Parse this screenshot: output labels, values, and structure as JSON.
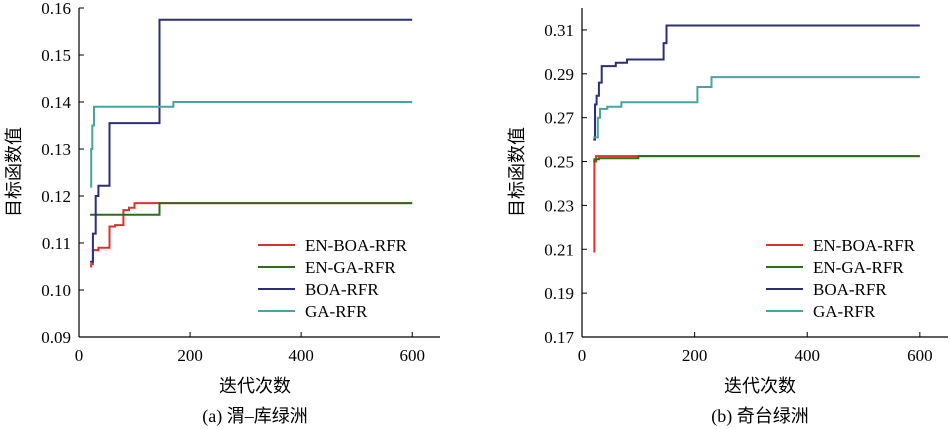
{
  "chart_data": [
    {
      "type": "line",
      "caption": "(a) 渭–库绿洲",
      "xlabel": "迭代次数",
      "ylabel": "目标函数值",
      "xlim": [
        0,
        650
      ],
      "ylim": [
        0.09,
        0.16
      ],
      "xticks": [
        0,
        200,
        400,
        600
      ],
      "yticks": [
        "0.09",
        "0.10",
        "0.11",
        "0.12",
        "0.13",
        "0.14",
        "0.15",
        "0.16"
      ],
      "legend_position": "lower-right",
      "series": [
        {
          "name": "EN-BOA-RFR",
          "color": "#e0302a",
          "x": [
            20,
            22,
            22,
            25,
            25,
            35,
            35,
            40,
            40,
            55,
            55,
            65,
            65,
            80,
            80,
            90,
            90,
            100,
            100,
            145,
            145,
            600
          ],
          "y": [
            0.105,
            0.105,
            0.1055,
            0.1055,
            0.1085,
            0.1085,
            0.109,
            0.109,
            0.109,
            0.109,
            0.1135,
            0.1135,
            0.1138,
            0.1138,
            0.117,
            0.117,
            0.1175,
            0.1175,
            0.1185,
            0.1185,
            0.1185,
            0.1185
          ]
        },
        {
          "name": "EN-GA-RFR",
          "color": "#2e6b1f",
          "x": [
            20,
            145,
            145,
            600
          ],
          "y": [
            0.116,
            0.116,
            0.1185,
            0.1185
          ]
        },
        {
          "name": "BOA-RFR",
          "color": "#2b2e7a",
          "x": [
            20,
            25,
            25,
            30,
            30,
            35,
            35,
            45,
            45,
            55,
            55,
            145,
            145,
            600
          ],
          "y": [
            0.106,
            0.106,
            0.112,
            0.112,
            0.12,
            0.12,
            0.1222,
            0.1222,
            0.1222,
            0.1222,
            0.1355,
            0.1355,
            0.1575,
            0.1575
          ]
        },
        {
          "name": "GA-RFR",
          "color": "#4aa3a0",
          "x": [
            20,
            22,
            22,
            24,
            24,
            27,
            27,
            145,
            145,
            170,
            170,
            600
          ],
          "y": [
            0.122,
            0.122,
            0.13,
            0.13,
            0.135,
            0.135,
            0.139,
            0.139,
            0.139,
            0.139,
            0.14,
            0.14
          ]
        }
      ]
    },
    {
      "type": "line",
      "caption": "(b) 奇台绿洲",
      "xlabel": "迭代次数",
      "ylabel": "目标函数值",
      "xlim": [
        0,
        650
      ],
      "ylim": [
        0.17,
        0.32
      ],
      "xticks": [
        0,
        200,
        400,
        600
      ],
      "yticks": [
        "0.17",
        "0.19",
        "0.21",
        "0.23",
        "0.25",
        "0.27",
        "0.29",
        "0.31"
      ],
      "legend_position": "lower-right",
      "series": [
        {
          "name": "EN-BOA-RFR",
          "color": "#e0302a",
          "x": [
            20,
            22,
            22,
            25,
            25,
            600
          ],
          "y": [
            0.209,
            0.209,
            0.25,
            0.25,
            0.2525,
            0.2525
          ]
        },
        {
          "name": "EN-GA-RFR",
          "color": "#2e6b1f",
          "x": [
            20,
            22,
            22,
            30,
            30,
            100,
            100,
            600
          ],
          "y": [
            0.25,
            0.25,
            0.251,
            0.251,
            0.2515,
            0.2515,
            0.2525,
            0.2525
          ]
        },
        {
          "name": "BOA-RFR",
          "color": "#2b2e7a",
          "x": [
            20,
            23,
            23,
            26,
            26,
            30,
            30,
            35,
            35,
            60,
            60,
            80,
            80,
            145,
            145,
            150,
            150,
            600
          ],
          "y": [
            0.26,
            0.26,
            0.276,
            0.276,
            0.28,
            0.28,
            0.286,
            0.286,
            0.2935,
            0.2935,
            0.295,
            0.295,
            0.2965,
            0.2965,
            0.304,
            0.304,
            0.312,
            0.312
          ]
        },
        {
          "name": "GA-RFR",
          "color": "#4aa3a0",
          "x": [
            20,
            28,
            28,
            32,
            32,
            45,
            45,
            70,
            70,
            205,
            205,
            230,
            230,
            600
          ],
          "y": [
            0.261,
            0.261,
            0.27,
            0.27,
            0.274,
            0.274,
            0.275,
            0.275,
            0.277,
            0.277,
            0.284,
            0.284,
            0.2885,
            0.2885
          ]
        }
      ]
    }
  ]
}
